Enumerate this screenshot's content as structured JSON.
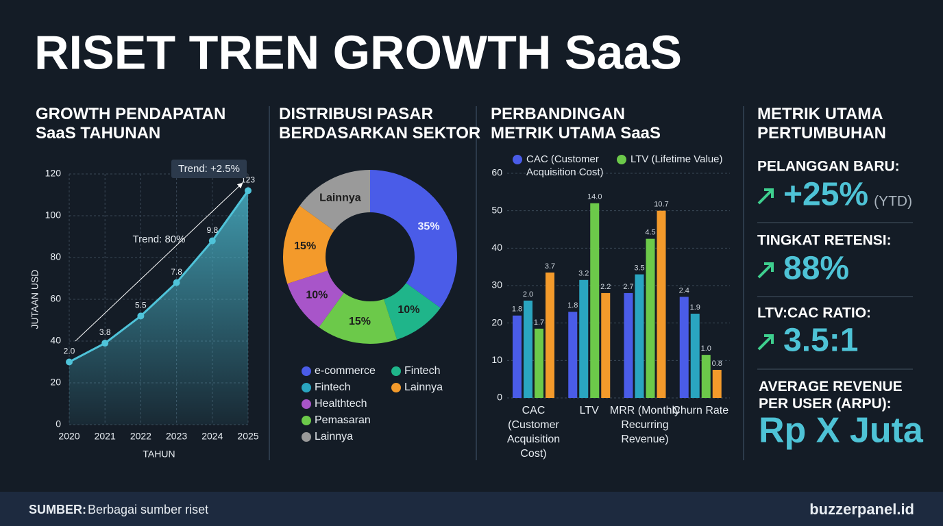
{
  "title": "RISET TREN GROWTH SaaS",
  "chart_data": [
    {
      "type": "area",
      "title": "GROWTH PENDAPATAN SaaS TAHUNAN",
      "categories": [
        "2020",
        "2021",
        "2022",
        "2023",
        "2024",
        "2025"
      ],
      "values": [
        30,
        39,
        52,
        68,
        88,
        112
      ],
      "point_labels": [
        "2.0",
        "3.8",
        "5.5",
        "7.8",
        "9.8",
        "123"
      ],
      "annotations": [
        "Trend: +2.5%",
        "Trend: 80%"
      ],
      "xlabel": "TAHUN",
      "ylabel": "JUTAAN USD",
      "ylim": [
        0,
        120
      ],
      "yticks": [
        0,
        20,
        40,
        60,
        80,
        100,
        120
      ],
      "grid": true,
      "color": "#4fc3d9"
    },
    {
      "type": "donut",
      "title": "DISTRIBUSI PASAR BERDASARKAN SEKTOR",
      "categories": [
        "e-commerce",
        "Fintech",
        "Pemasaran",
        "Healthtech",
        "Lainnya",
        "Lainnya",
        "Fintech"
      ],
      "values": [
        35,
        10,
        15,
        10,
        15,
        15,
        null
      ],
      "value_labels": [
        "35%",
        "10%",
        "15%",
        "10%",
        "15%",
        null,
        null
      ],
      "colors": [
        "#4a5ce8",
        "#1fb58a",
        "#6cc94a",
        "#a855c9",
        "#f39a2b",
        "#9a9a9a",
        "#2aa5c0"
      ]
    },
    {
      "type": "grouped-bar",
      "title": "PERBANDINGAN METRIK UTAMA SaaS",
      "categories": [
        "CAC (Customer Acquisition Cost)",
        "LTV",
        "MRR (Monthly Recurring Revenue)",
        "Churn Rate"
      ],
      "series": [
        {
          "name": "CAC (Customer Acquisition Cost)",
          "color": "#4a5ce8",
          "values": [
            22,
            23,
            28,
            27
          ],
          "point_labels": [
            "1.8",
            "1.8",
            "2.7",
            "2.4"
          ]
        },
        {
          "name": null,
          "color": "#2aa5c0",
          "values": [
            26,
            31.5,
            33,
            22.5
          ],
          "point_labels": [
            "2.0",
            "3.2",
            "3.5",
            "1.9"
          ]
        },
        {
          "name": "LTV (Lifetime Value)",
          "color": "#6cc94a",
          "values": [
            18.5,
            52,
            42.5,
            11.5
          ],
          "point_labels": [
            "1.7",
            "14.0",
            "4.5",
            "1.0"
          ]
        },
        {
          "name": null,
          "color": "#f39a2b",
          "values": [
            33.5,
            28,
            50,
            7.5
          ],
          "point_labels": [
            "3.7",
            "2.2",
            "10.7",
            "0.8"
          ]
        }
      ],
      "ylim": [
        0,
        60
      ],
      "yticks": [
        0,
        10,
        20,
        30,
        40,
        50,
        60
      ],
      "grid": true
    }
  ],
  "metrics_title": "METRIK UTAMA PERTUMBUHAN",
  "metrics": [
    {
      "label": "PELANGGAN BARU:",
      "value": "+25%",
      "note": "(YTD)"
    },
    {
      "label": "TINGKAT RETENSI:",
      "value": "88%"
    },
    {
      "label": "LTV:CAC RATIO:",
      "value": "3.5:1"
    },
    {
      "label": "AVERAGE REVENUE PER USER (ARPU):",
      "value": "Rp X Juta"
    }
  ],
  "footer": {
    "source_label": "SUMBER:",
    "source": "Berbagai sumber riset",
    "site": "buzzerpanel.id"
  }
}
